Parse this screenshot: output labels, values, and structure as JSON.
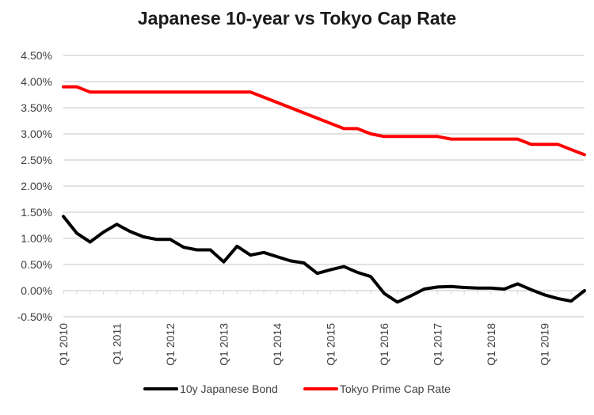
{
  "chart_data": {
    "type": "line",
    "title": "Japanese 10-year vs Tokyo Cap Rate",
    "xlabel": "",
    "ylabel": "",
    "ylim": [
      -0.5,
      4.5
    ],
    "y_ticks": [
      "4.50%",
      "4.00%",
      "3.50%",
      "3.00%",
      "2.50%",
      "2.00%",
      "1.50%",
      "1.00%",
      "0.50%",
      "0.00%",
      "-0.50%"
    ],
    "y_tick_values": [
      4.5,
      4.0,
      3.5,
      3.0,
      2.5,
      2.0,
      1.5,
      1.0,
      0.5,
      0.0,
      -0.5
    ],
    "grid": true,
    "legend_position": "bottom",
    "x_tick_labels": [
      "Q1 2010",
      "Q1 2011",
      "Q1 2012",
      "Q1 2013",
      "Q1 2014",
      "Q1 2015",
      "Q1 2016",
      "Q1 2017",
      "Q1 2018",
      "Q1 2019"
    ],
    "x": [
      "Q1 2010",
      "Q2 2010",
      "Q3 2010",
      "Q4 2010",
      "Q1 2011",
      "Q2 2011",
      "Q3 2011",
      "Q4 2011",
      "Q1 2012",
      "Q2 2012",
      "Q3 2012",
      "Q4 2012",
      "Q1 2013",
      "Q2 2013",
      "Q3 2013",
      "Q4 2013",
      "Q1 2014",
      "Q2 2014",
      "Q3 2014",
      "Q4 2014",
      "Q1 2015",
      "Q2 2015",
      "Q3 2015",
      "Q4 2015",
      "Q1 2016",
      "Q2 2016",
      "Q3 2016",
      "Q4 2016",
      "Q1 2017",
      "Q2 2017",
      "Q3 2017",
      "Q4 2017",
      "Q1 2018",
      "Q2 2018",
      "Q3 2018",
      "Q4 2018",
      "Q1 2019",
      "Q2 2019",
      "Q3 2019",
      "Q4 2019"
    ],
    "series": [
      {
        "name": "10y Japanese Bond",
        "color": "#000000",
        "values": [
          1.42,
          1.1,
          0.93,
          1.12,
          1.27,
          1.13,
          1.03,
          0.98,
          0.98,
          0.83,
          0.78,
          0.78,
          0.55,
          0.85,
          0.68,
          0.73,
          0.65,
          0.57,
          0.53,
          0.33,
          0.4,
          0.46,
          0.35,
          0.27,
          -0.05,
          -0.22,
          -0.1,
          0.03,
          0.07,
          0.08,
          0.06,
          0.05,
          0.05,
          0.03,
          0.13,
          0.02,
          -0.08,
          -0.15,
          -0.2,
          0.0
        ]
      },
      {
        "name": "Tokyo Prime Cap Rate",
        "color": "#ff0000",
        "values": [
          3.9,
          3.9,
          3.8,
          3.8,
          3.8,
          3.8,
          3.8,
          3.8,
          3.8,
          3.8,
          3.8,
          3.8,
          3.8,
          3.8,
          3.8,
          3.7,
          3.6,
          3.5,
          3.4,
          3.3,
          3.2,
          3.1,
          3.1,
          3.0,
          2.95,
          2.95,
          2.95,
          2.95,
          2.95,
          2.9,
          2.9,
          2.9,
          2.9,
          2.9,
          2.9,
          2.8,
          2.8,
          2.8,
          2.7,
          2.6
        ]
      }
    ]
  },
  "legend": {
    "items": [
      {
        "label": "10y Japanese Bond",
        "color": "#000000"
      },
      {
        "label": "Tokyo Prime Cap Rate",
        "color": "#ff0000"
      }
    ]
  }
}
